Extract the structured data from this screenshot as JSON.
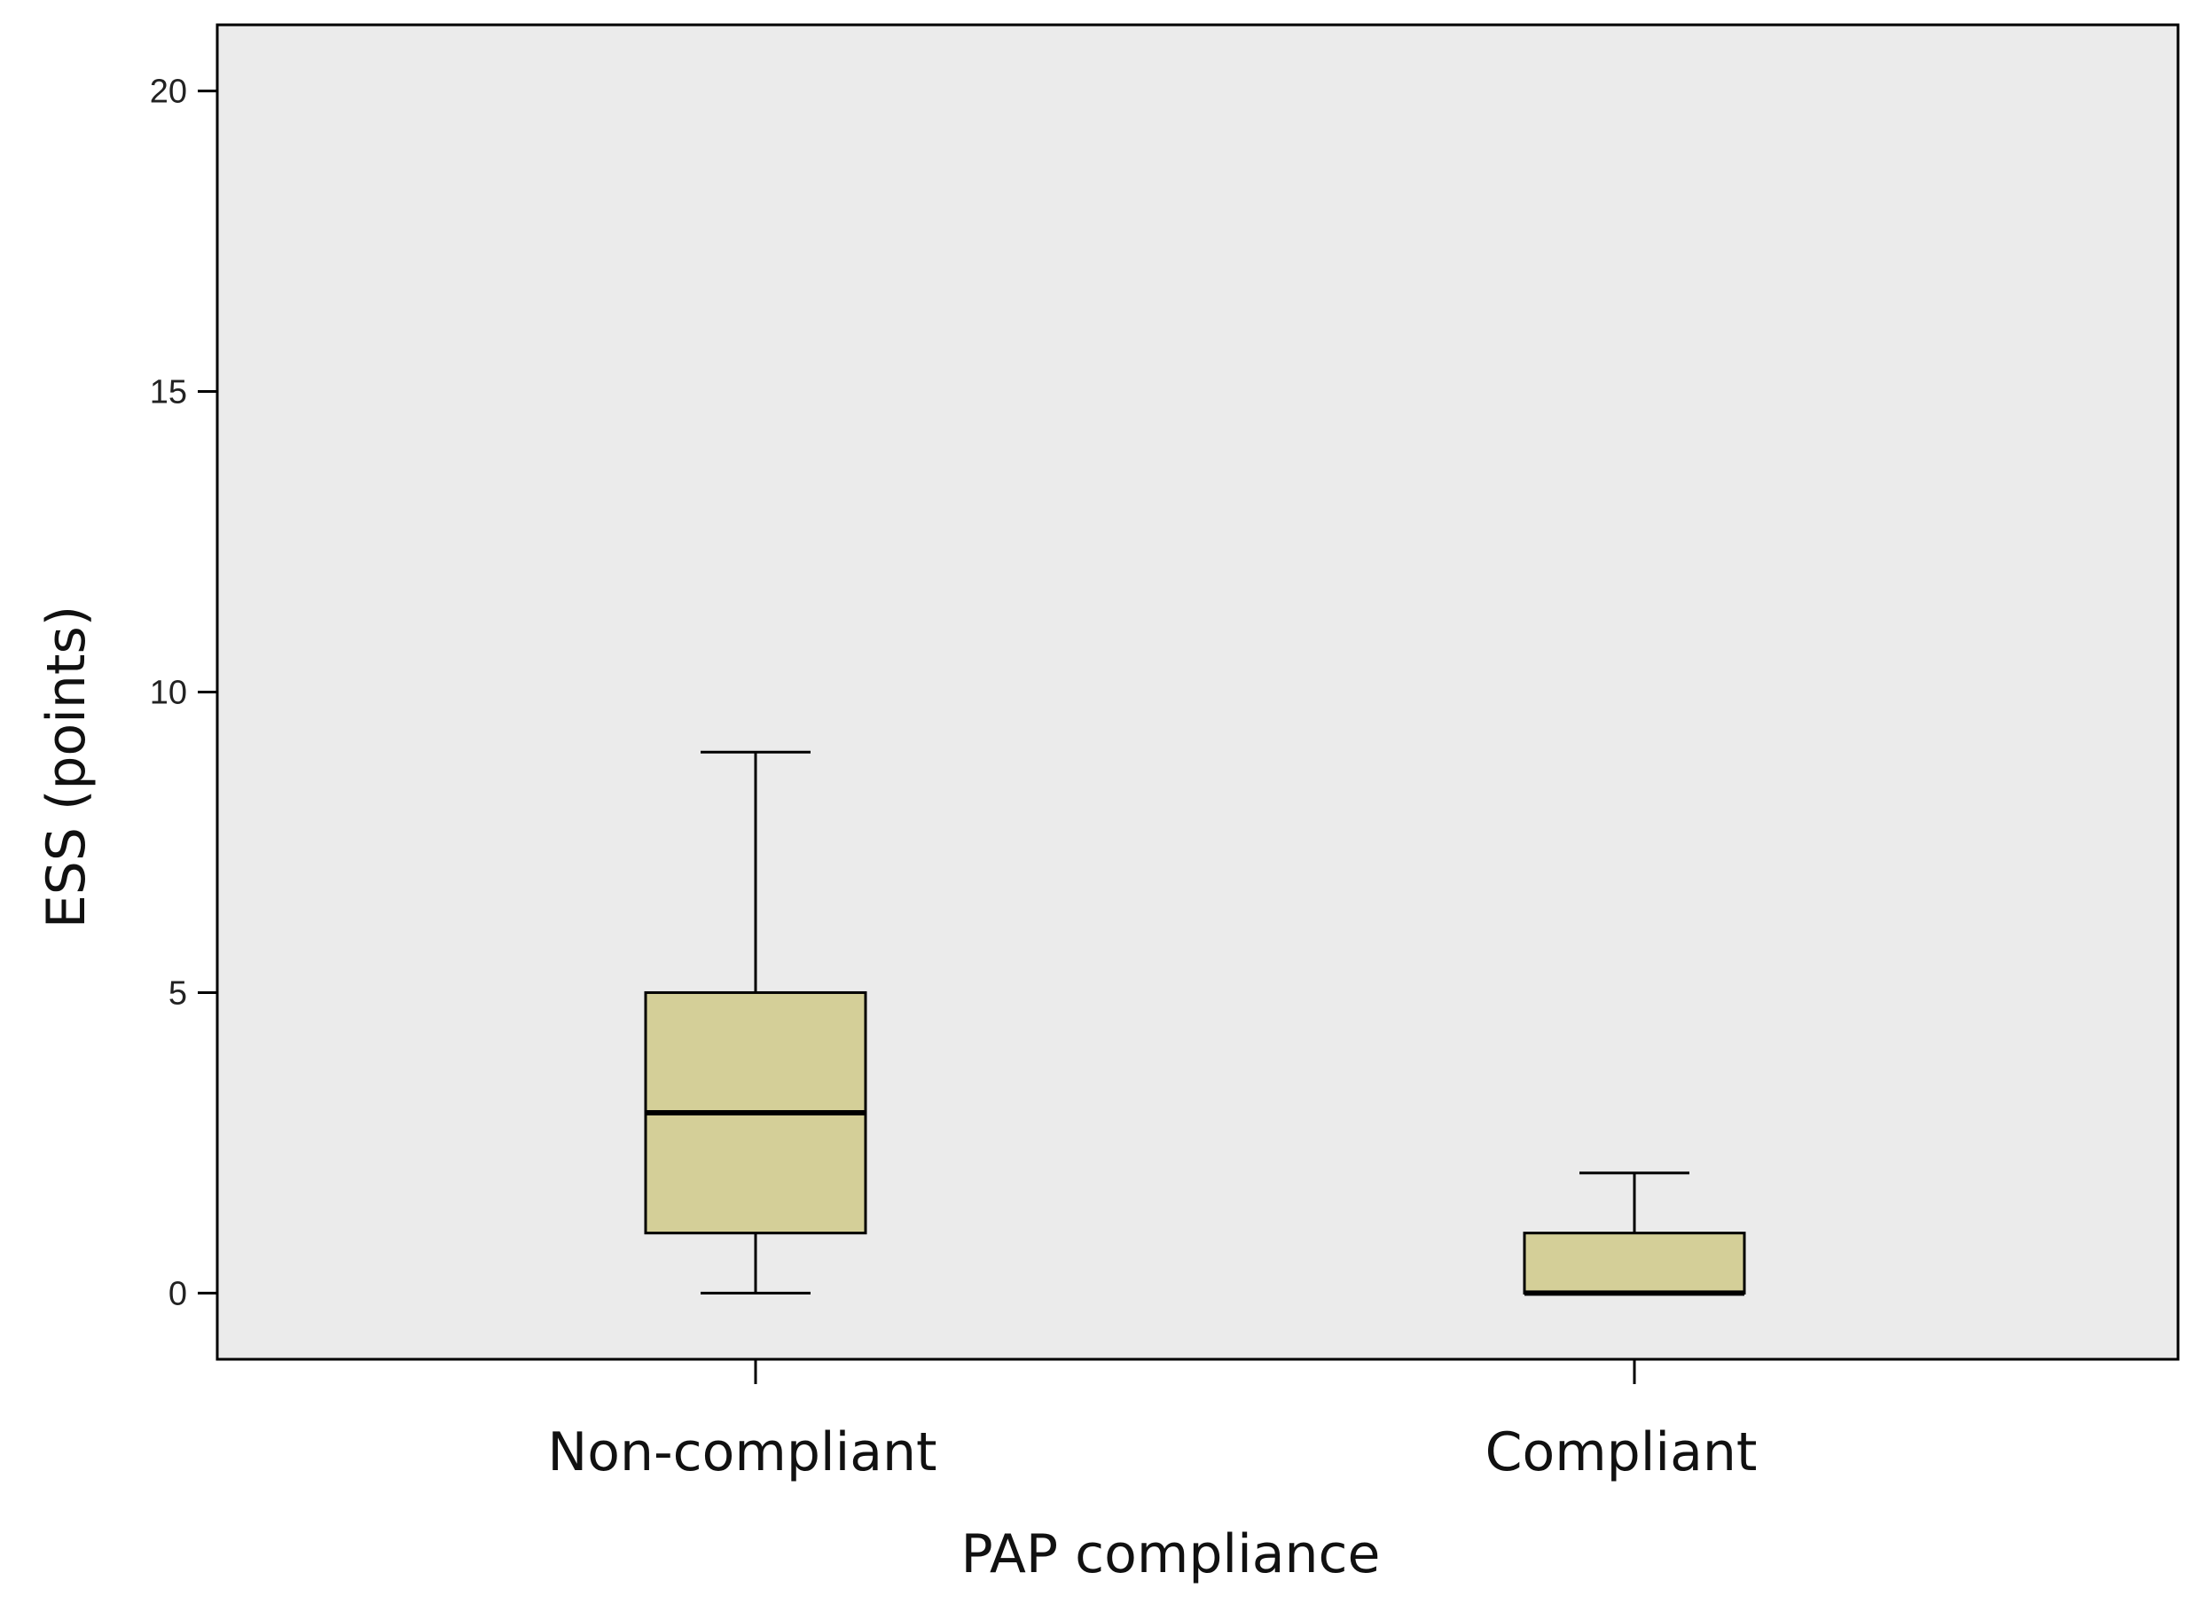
{
  "chart_data": {
    "type": "boxplot",
    "title": "",
    "xlabel": "PAP compliance",
    "ylabel": "ESS (points)",
    "ylim": [
      -1.1,
      21.1
    ],
    "yticks": [
      0,
      5,
      10,
      15,
      20
    ],
    "ytick_labels": [
      "0",
      "5",
      "10",
      "15",
      "20"
    ],
    "grid": false,
    "legend": "none",
    "categories": [
      "Non-compliant",
      "Compliant"
    ],
    "boxes": [
      {
        "category": "Non-compliant",
        "min": 0,
        "q1": 1,
        "median": 3,
        "q3": 5,
        "max": 9
      },
      {
        "category": "Compliant",
        "min": 0,
        "q1": 0,
        "median": 0,
        "q3": 1,
        "max": 2
      }
    ],
    "colors": {
      "plot_background": "#ebebeb",
      "box_fill": "#d4cf98",
      "stroke": "#000000"
    }
  }
}
